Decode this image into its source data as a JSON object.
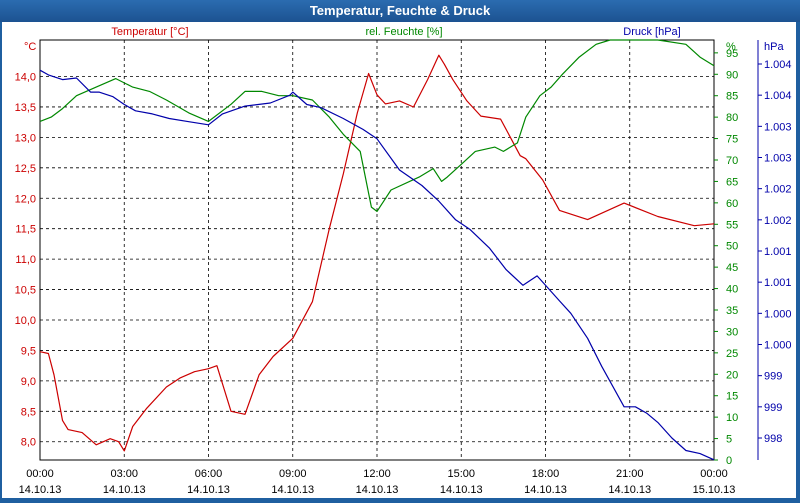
{
  "window": {
    "title": "Temperatur, Feuchte & Druck"
  },
  "colors": {
    "temperature": "#cc0000",
    "humidity": "#008800",
    "pressure": "#0000aa",
    "axis_text": "#000000",
    "frame": "#1f5fa0"
  },
  "chart_data": {
    "type": "line",
    "title": "Temperatur, Feuchte & Druck",
    "grid": true,
    "x_ticks": [
      {
        "time": "00:00",
        "date": "14.10.13"
      },
      {
        "time": "03:00",
        "date": "14.10.13"
      },
      {
        "time": "06:00",
        "date": "14.10.13"
      },
      {
        "time": "09:00",
        "date": "14.10.13"
      },
      {
        "time": "12:00",
        "date": "14.10.13"
      },
      {
        "time": "15:00",
        "date": "14.10.13"
      },
      {
        "time": "18:00",
        "date": "14.10.13"
      },
      {
        "time": "21:00",
        "date": "14.10.13"
      },
      {
        "time": "00:00",
        "date": "15.10.13"
      }
    ],
    "x_unit": "hours since 14.10.13 00:00",
    "xlim": [
      0,
      24
    ],
    "axes": {
      "temperature": {
        "label": "Temperatur [°C]",
        "unit": "°C",
        "ylim": [
          7.7,
          14.6
        ],
        "ticks": [
          "8,0",
          "8,5",
          "9,0",
          "9,5",
          "10,0",
          "10,5",
          "11,0",
          "11,5",
          "12,0",
          "12,5",
          "13,0",
          "13,5",
          "14,0"
        ],
        "tick_values": [
          8.0,
          8.5,
          9.0,
          9.5,
          10.0,
          10.5,
          11.0,
          11.5,
          12.0,
          12.5,
          13.0,
          13.5,
          14.0
        ]
      },
      "humidity": {
        "label": "rel. Feuchte [%]",
        "unit": "%",
        "ylim": [
          0,
          98
        ],
        "ticks": [
          "0",
          "5",
          "10",
          "15",
          "20",
          "25",
          "30",
          "35",
          "40",
          "45",
          "50",
          "55",
          "60",
          "65",
          "70",
          "75",
          "80",
          "85",
          "90",
          "95"
        ],
        "tick_values": [
          0,
          5,
          10,
          15,
          20,
          25,
          30,
          35,
          40,
          45,
          50,
          55,
          60,
          65,
          70,
          75,
          80,
          85,
          90,
          95
        ]
      },
      "pressure": {
        "label": "Druck [hPa]",
        "unit": "hPa",
        "ticks": [
          "998",
          "999",
          "999",
          "1.000",
          "1.000",
          "1.001",
          "1.001",
          "1.002",
          "1.002",
          "1.003",
          "1.003",
          "1.004",
          "1.004"
        ]
      }
    },
    "series": [
      {
        "name": "Temperatur [°C]",
        "axis": "temperature",
        "x": [
          0,
          0.3,
          0.5,
          0.8,
          1.0,
          1.5,
          2.0,
          2.5,
          2.8,
          3.0,
          3.3,
          3.8,
          4.5,
          5.0,
          5.5,
          6.0,
          6.3,
          6.8,
          7.3,
          7.8,
          8.3,
          9.0,
          9.7,
          10.3,
          10.8,
          11.3,
          11.7,
          12.0,
          12.3,
          12.8,
          13.3,
          13.8,
          14.2,
          14.4,
          14.7,
          15.2,
          15.7,
          16.4,
          17.1,
          17.3,
          17.9,
          18.5,
          19.5,
          20.8,
          22.0,
          23.3,
          24.0
        ],
        "values": [
          9.48,
          9.45,
          9.1,
          8.35,
          8.2,
          8.15,
          7.95,
          8.05,
          8.0,
          7.85,
          8.25,
          8.55,
          8.9,
          9.05,
          9.15,
          9.2,
          9.25,
          8.5,
          8.45,
          9.1,
          9.4,
          9.7,
          10.3,
          11.5,
          12.4,
          13.4,
          14.05,
          13.7,
          13.55,
          13.6,
          13.5,
          13.95,
          14.35,
          14.2,
          13.95,
          13.6,
          13.35,
          13.3,
          12.7,
          12.65,
          12.3,
          11.8,
          11.65,
          11.92,
          11.7,
          11.55,
          11.58
        ]
      },
      {
        "name": "rel. Feuchte [%]",
        "axis": "humidity",
        "x": [
          0,
          0.4,
          0.8,
          1.3,
          2.0,
          2.7,
          3.3,
          3.9,
          4.5,
          5.3,
          6.0,
          6.8,
          7.3,
          7.9,
          8.5,
          9.0,
          9.7,
          10.3,
          10.8,
          11.4,
          11.8,
          12.0,
          12.5,
          13.5,
          14.0,
          14.3,
          14.5,
          15.0,
          15.5,
          16.2,
          16.5,
          17.0,
          17.3,
          17.8,
          18.2,
          18.6,
          19.2,
          19.8,
          20.3,
          21.0,
          22.0,
          23.0,
          23.5,
          24.0
        ],
        "values": [
          79,
          80,
          82,
          85,
          87,
          89,
          87,
          86,
          84,
          81,
          79,
          83,
          86,
          86,
          85,
          85,
          84,
          80,
          76,
          72,
          59,
          58,
          63,
          66,
          68,
          65,
          66,
          69,
          72,
          73,
          72,
          74,
          80,
          85,
          87,
          90,
          94,
          97,
          98,
          98,
          98,
          97,
          94,
          92
        ]
      },
      {
        "name": "Druck [hPa]",
        "axis": "pressure",
        "y_scale": "0 = bottom tick (998 hPa), 12 = top tick (1.004 hPa)",
        "x": [
          0,
          0.3,
          0.8,
          1.3,
          1.8,
          2.1,
          2.6,
          3.0,
          3.4,
          4.0,
          4.6,
          5.3,
          6.0,
          6.5,
          7.3,
          8.2,
          8.9,
          9.0,
          9.5,
          10.0,
          10.8,
          11.5,
          12.0,
          12.8,
          13.6,
          14.2,
          14.8,
          15.3,
          16.0,
          16.6,
          17.2,
          17.7,
          18.1,
          18.5,
          18.9,
          19.5,
          20.0,
          20.8,
          21.2,
          21.6,
          22.0,
          22.5,
          23.0,
          23.5,
          24.0
        ],
        "values": [
          11.8,
          11.65,
          11.5,
          11.55,
          11.1,
          11.1,
          10.95,
          10.7,
          10.5,
          10.4,
          10.25,
          10.15,
          10.05,
          10.4,
          10.65,
          10.75,
          11.0,
          11.1,
          10.7,
          10.6,
          10.25,
          9.9,
          9.6,
          8.6,
          8.1,
          7.6,
          7.0,
          6.7,
          6.1,
          5.4,
          4.9,
          5.2,
          4.8,
          4.4,
          4.0,
          3.2,
          2.3,
          1.0,
          1.0,
          0.8,
          0.5,
          0.0,
          -0.4,
          -0.5,
          -0.7
        ]
      }
    ]
  }
}
